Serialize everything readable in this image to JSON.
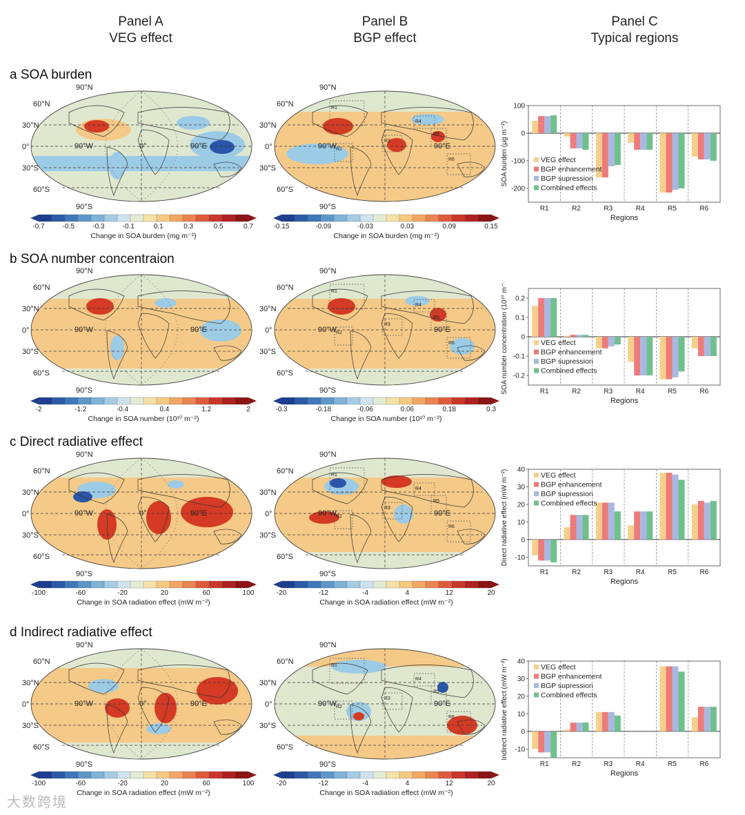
{
  "panels": {
    "a": {
      "title": "Panel A",
      "subtitle": "VEG effect"
    },
    "b": {
      "title": "Panel B",
      "subtitle": "BGP effect"
    },
    "c": {
      "title": "Panel C",
      "subtitle": "Typical regions"
    }
  },
  "map_labels": {
    "lat": [
      "90°N",
      "60°N",
      "30°N",
      "0°",
      "30°S",
      "60°S",
      "90°S"
    ],
    "lon": [
      "90°W",
      "0°",
      "90°E"
    ],
    "regions": [
      "R1",
      "R2",
      "R3",
      "R4",
      "R5",
      "R6"
    ]
  },
  "rows": [
    {
      "title": "a SOA burden",
      "colorbar_a": {
        "ticks": [
          "-0.7",
          "-0.5",
          "-0.3",
          "-0.1",
          "0.1",
          "0.3",
          "0.5",
          "0.7"
        ],
        "label": "Change in SOA burden (mg m⁻²)"
      },
      "colorbar_b": {
        "ticks": [
          "-0.15",
          "-0.09",
          "-0.03",
          "0.03",
          "0.09",
          "0.15"
        ],
        "label": "Change in SOA burden (mg m⁻²)"
      }
    },
    {
      "title": "b SOA number concentraion",
      "colorbar_a": {
        "ticks": [
          "-2",
          "-1.2",
          "-0.4",
          "0.4",
          "1.2",
          "2"
        ],
        "label": "Change in SOA number (10¹⁰ m⁻²)"
      },
      "colorbar_b": {
        "ticks": [
          "-0.3",
          "-0.18",
          "-0.06",
          "0.06",
          "0.18",
          "0.3"
        ],
        "label": "Change in SOA number (10¹⁰ m⁻²)"
      }
    },
    {
      "title": "c Direct radiative effect",
      "colorbar_a": {
        "ticks": [
          "-100",
          "-60",
          "-20",
          "20",
          "60",
          "100"
        ],
        "label": "Change in SOA radiation effect (mW m⁻²)"
      },
      "colorbar_b": {
        "ticks": [
          "-20",
          "-12",
          "-4",
          "4",
          "12",
          "20"
        ],
        "label": "Change in SOA radiation effect (mW m⁻²)"
      }
    },
    {
      "title": "d Indirect radiative effect",
      "colorbar_a": {
        "ticks": [
          "-100",
          "-60",
          "-20",
          "20",
          "60",
          "100"
        ],
        "label": "Change in SOA radiation effect (mW m⁻²)"
      },
      "colorbar_b": {
        "ticks": [
          "-20",
          "-12",
          "-4",
          "4",
          "12",
          "20"
        ],
        "label": "Change in SOA radiation effect (mW m⁻²)"
      }
    }
  ],
  "colors": {
    "veg": "#f7cf8b",
    "enh": "#ec7c7b",
    "sup": "#a9b8e3",
    "comb": "#6fc08d",
    "cold": "#2a55a8",
    "cool": "#9ccbe6",
    "neutral": "#dfe7cf",
    "warm": "#f5c987",
    "hot": "#d43a24"
  },
  "chart_data": [
    {
      "type": "bar",
      "ylabel": "SOA burden (μg m⁻²)",
      "xlabel": "Regions",
      "categories": [
        "R1",
        "R2",
        "R3",
        "R4",
        "R5",
        "R6"
      ],
      "ylim": [
        -250,
        100
      ],
      "yticks": [
        100,
        0,
        -100,
        -200
      ],
      "legend": "bottom-left",
      "series": [
        {
          "name": "VEG effect",
          "values": [
            45,
            -12,
            -160,
            -35,
            -215,
            -85
          ]
        },
        {
          "name": "BGP enhancement",
          "values": [
            62,
            -55,
            -160,
            -60,
            -215,
            -95
          ]
        },
        {
          "name": "BGP supression",
          "values": [
            62,
            -55,
            -120,
            -60,
            -205,
            -95
          ]
        },
        {
          "name": "Combined effects",
          "values": [
            65,
            -60,
            -115,
            -60,
            -200,
            -100
          ]
        }
      ]
    },
    {
      "type": "bar",
      "ylabel": "SOA number concentration (10¹⁰ m⁻²)",
      "xlabel": "Regions",
      "categories": [
        "R1",
        "R2",
        "R3",
        "R4",
        "R5",
        "R6"
      ],
      "ylim": [
        -0.25,
        0.25
      ],
      "yticks": [
        0.2,
        0.1,
        0.0,
        -0.1,
        -0.2
      ],
      "legend": "bottom-left",
      "series": [
        {
          "name": "VEG effect",
          "values": [
            0.16,
            0.005,
            -0.06,
            -0.13,
            -0.22,
            -0.06
          ]
        },
        {
          "name": "BGP enhancement",
          "values": [
            0.2,
            0.01,
            -0.06,
            -0.2,
            -0.22,
            -0.1
          ]
        },
        {
          "name": "BGP supression",
          "values": [
            0.2,
            0.01,
            -0.05,
            -0.2,
            -0.21,
            -0.1
          ]
        },
        {
          "name": "Combined effects",
          "values": [
            0.2,
            0.01,
            -0.04,
            -0.2,
            -0.18,
            -0.1
          ]
        }
      ]
    },
    {
      "type": "bar",
      "ylabel": "Direct radiative effect (mW m⁻²)",
      "xlabel": "Regions",
      "categories": [
        "R1",
        "R2",
        "R3",
        "R4",
        "R5",
        "R6"
      ],
      "ylim": [
        -15,
        40
      ],
      "yticks": [
        40,
        30,
        20,
        10,
        0,
        -10
      ],
      "legend": "top-left",
      "series": [
        {
          "name": "VEG effect",
          "values": [
            -9,
            7,
            21,
            8,
            38,
            20
          ]
        },
        {
          "name": "BGP enhancement",
          "values": [
            -12,
            14,
            21,
            16,
            38,
            22
          ]
        },
        {
          "name": "BGP supression",
          "values": [
            -12,
            14,
            21,
            16,
            37,
            21
          ]
        },
        {
          "name": "Combined effects",
          "values": [
            -13,
            14,
            16,
            16,
            34,
            22
          ]
        }
      ]
    },
    {
      "type": "bar",
      "ylabel": "Indirect radiative effect (mW m⁻²)",
      "xlabel": "Regions",
      "categories": [
        "R1",
        "R2",
        "R3",
        "R4",
        "R5",
        "R6"
      ],
      "ylim": [
        -15,
        40
      ],
      "yticks": [
        40,
        30,
        20,
        10,
        0,
        -10
      ],
      "legend": "top-left",
      "series": [
        {
          "name": "VEG effect",
          "values": [
            -10,
            1,
            11,
            0,
            37,
            8
          ]
        },
        {
          "name": "BGP enhancement",
          "values": [
            -12,
            5,
            11,
            0,
            37,
            14
          ]
        },
        {
          "name": "BGP supression",
          "values": [
            -12,
            5,
            11,
            0,
            37,
            14
          ]
        },
        {
          "name": "Combined effects",
          "values": [
            -15,
            5,
            9,
            0,
            34,
            14
          ]
        }
      ]
    }
  ],
  "watermark": "大数跨境"
}
